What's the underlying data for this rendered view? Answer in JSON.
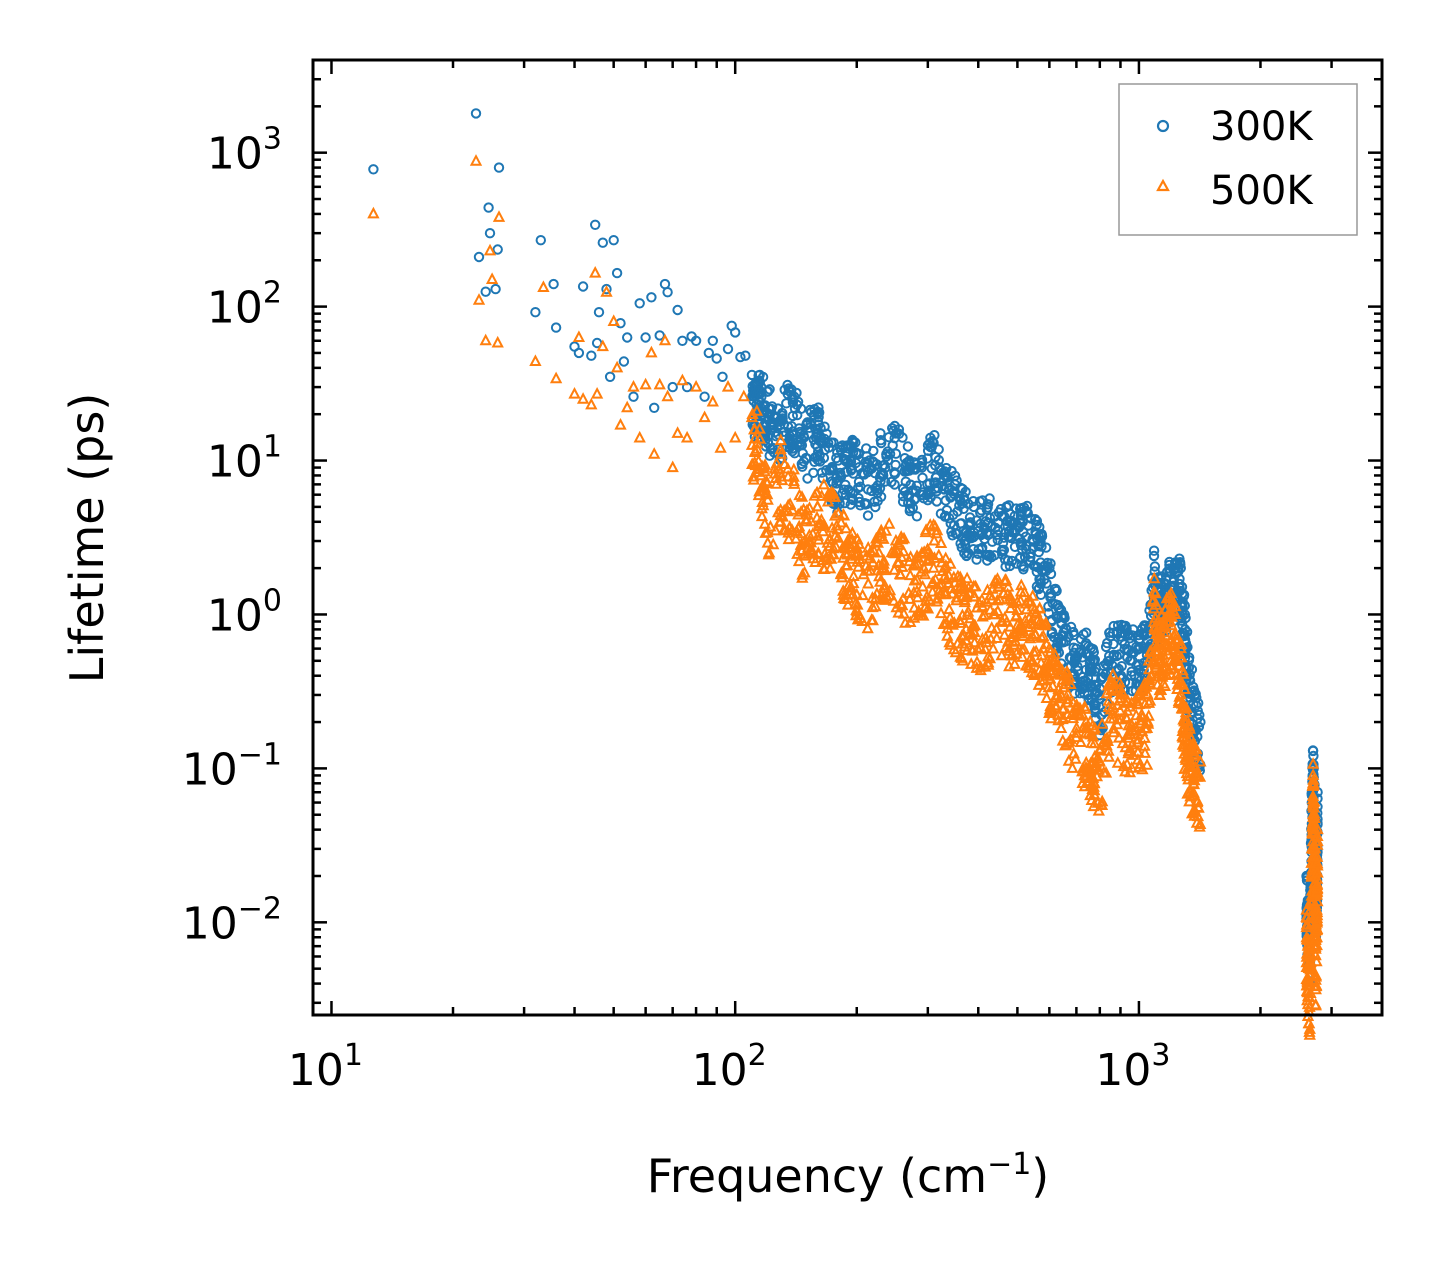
{
  "chart_data": {
    "type": "scatter",
    "title": "",
    "xlabel": "Frequency (cm",
    "xlabel_sup": "−1",
    "xlabel_end": ")",
    "ylabel": "Lifetime (ps)",
    "xscale": "log",
    "yscale": "log",
    "xlim": [
      9,
      4000
    ],
    "ylim": [
      0.0025,
      4000
    ],
    "x_ticks": [
      {
        "value": 10,
        "base": "10",
        "exp": "1"
      },
      {
        "value": 100,
        "base": "10",
        "exp": "2"
      },
      {
        "value": 1000,
        "base": "10",
        "exp": "3"
      }
    ],
    "y_ticks": [
      {
        "value": 0.01,
        "base": "10",
        "exp": "−2"
      },
      {
        "value": 0.1,
        "base": "10",
        "exp": "−1"
      },
      {
        "value": 1,
        "base": "10",
        "exp": "0"
      },
      {
        "value": 10,
        "base": "10",
        "exp": "1"
      },
      {
        "value": 100,
        "base": "10",
        "exp": "2"
      },
      {
        "value": 1000,
        "base": "10",
        "exp": "3"
      }
    ],
    "legend_position": "top-right",
    "series": [
      {
        "name": "300K",
        "marker": "circle",
        "color": "#1f77b4",
        "points": [
          [
            12.7,
            780
          ],
          [
            22.8,
            1800
          ],
          [
            23.2,
            210
          ],
          [
            24.1,
            125
          ],
          [
            24.5,
            440
          ],
          [
            24.7,
            300
          ],
          [
            25.5,
            130
          ],
          [
            25.8,
            235
          ],
          [
            26.0,
            800
          ],
          [
            32.0,
            92
          ],
          [
            33.0,
            270
          ],
          [
            35.5,
            140
          ],
          [
            36.0,
            73
          ],
          [
            40.0,
            55
          ],
          [
            41.0,
            50
          ],
          [
            42.0,
            135
          ],
          [
            44.0,
            48
          ],
          [
            45.0,
            340
          ],
          [
            45.5,
            58
          ],
          [
            46.0,
            92
          ],
          [
            47.0,
            260
          ],
          [
            48.0,
            130
          ],
          [
            49.0,
            35
          ],
          [
            50.0,
            270
          ],
          [
            51.0,
            165
          ],
          [
            52.0,
            78
          ],
          [
            53.0,
            44
          ],
          [
            54.0,
            63
          ],
          [
            56.0,
            26
          ],
          [
            58.0,
            105
          ],
          [
            60.0,
            63
          ],
          [
            62.0,
            115
          ],
          [
            63.0,
            22
          ],
          [
            65.0,
            65
          ],
          [
            67.0,
            140
          ],
          [
            68.0,
            124
          ],
          [
            70.0,
            30
          ],
          [
            72.0,
            95
          ],
          [
            74.0,
            60
          ],
          [
            76.0,
            30
          ],
          [
            78.0,
            64
          ],
          [
            80.0,
            60
          ],
          [
            84.0,
            26
          ],
          [
            86.0,
            50
          ],
          [
            88.0,
            60
          ],
          [
            90.0,
            46
          ],
          [
            93.0,
            35
          ],
          [
            96.0,
            53
          ],
          [
            98.0,
            75
          ],
          [
            100.0,
            68
          ],
          [
            103.0,
            47
          ],
          [
            106.0,
            48
          ],
          [
            110.0,
            36
          ],
          [
            113.0,
            31
          ],
          [
            116.0,
            30
          ],
          [
            120.0,
            28
          ],
          [
            125.0,
            19
          ],
          [
            135.0,
            27
          ],
          [
            140.0,
            26
          ],
          [
            150.0,
            17
          ],
          [
            160.0,
            20
          ],
          [
            170.0,
            13
          ],
          [
            180.0,
            10
          ],
          [
            190.0,
            12
          ],
          [
            200.0,
            11
          ],
          [
            215.0,
            10
          ],
          [
            230.0,
            13
          ],
          [
            250.0,
            15
          ],
          [
            270.0,
            10
          ],
          [
            290.0,
            9
          ],
          [
            310.0,
            13
          ],
          [
            330.0,
            8
          ],
          [
            350.0,
            7
          ],
          [
            370.0,
            5.5
          ],
          [
            390.0,
            5
          ],
          [
            420.0,
            4.8
          ],
          [
            450.0,
            4.6
          ],
          [
            480.0,
            4.5
          ],
          [
            510.0,
            4.4
          ],
          [
            540.0,
            4.2
          ],
          [
            570.0,
            3
          ],
          [
            600.0,
            2
          ],
          [
            630.0,
            1.15
          ],
          [
            660.0,
            0.8
          ],
          [
            700.0,
            0.6
          ],
          [
            740.0,
            0.65
          ],
          [
            770.0,
            0.5
          ],
          [
            800.0,
            0.33
          ],
          [
            850.0,
            0.72
          ],
          [
            900.0,
            0.72
          ],
          [
            950.0,
            0.7
          ],
          [
            1000.0,
            0.68
          ],
          [
            1050.0,
            0.75
          ],
          [
            1090.0,
            2.4
          ],
          [
            1120.0,
            1.4
          ],
          [
            1150.0,
            1.6
          ],
          [
            1190.0,
            2.1
          ],
          [
            1230.0,
            2.0
          ],
          [
            1270.0,
            2.0
          ],
          [
            1300.0,
            1.0
          ],
          [
            1330.0,
            0.45
          ],
          [
            1370.0,
            0.32
          ],
          [
            1420.0,
            0.2
          ],
          [
            2600.0,
            0.02
          ],
          [
            2620.0,
            0.012
          ],
          [
            2650.0,
            0.009
          ],
          [
            2680.0,
            0.06
          ],
          [
            2700.0,
            0.13
          ],
          [
            2710.0,
            0.1
          ],
          [
            2730.0,
            0.05
          ],
          [
            2740.0,
            0.015
          ],
          [
            2760.0,
            0.028
          ],
          [
            2770.0,
            0.07
          ]
        ]
      },
      {
        "name": "500K",
        "marker": "triangle",
        "color": "#ff7f0e",
        "points": [
          [
            12.7,
            400
          ],
          [
            22.8,
            880
          ],
          [
            23.2,
            110
          ],
          [
            24.1,
            60
          ],
          [
            24.7,
            230
          ],
          [
            25.0,
            150
          ],
          [
            25.8,
            58
          ],
          [
            26.0,
            380
          ],
          [
            32.0,
            44
          ],
          [
            33.5,
            133
          ],
          [
            36.0,
            34
          ],
          [
            40.0,
            27
          ],
          [
            41.0,
            63
          ],
          [
            42.0,
            25
          ],
          [
            44.0,
            23
          ],
          [
            45.0,
            165
          ],
          [
            45.5,
            27
          ],
          [
            47.0,
            55
          ],
          [
            48.0,
            124
          ],
          [
            50.0,
            80
          ],
          [
            51.0,
            40
          ],
          [
            52.0,
            17
          ],
          [
            54.0,
            22
          ],
          [
            56.0,
            30
          ],
          [
            58.0,
            14
          ],
          [
            60.0,
            31
          ],
          [
            62.0,
            50
          ],
          [
            63.0,
            11
          ],
          [
            65.0,
            31
          ],
          [
            67.0,
            60
          ],
          [
            68.0,
            26
          ],
          [
            70.0,
            9
          ],
          [
            72.0,
            15
          ],
          [
            74.0,
            33
          ],
          [
            76.0,
            14
          ],
          [
            80.0,
            30
          ],
          [
            84.0,
            19
          ],
          [
            88.0,
            24
          ],
          [
            92.0,
            12
          ],
          [
            96.0,
            30
          ],
          [
            100.0,
            14
          ],
          [
            105.0,
            26
          ],
          [
            110.0,
            19
          ],
          [
            115.0,
            16
          ],
          [
            120.0,
            6
          ],
          [
            130.0,
            11
          ],
          [
            140.0,
            7
          ],
          [
            150.0,
            4
          ],
          [
            160.0,
            5
          ],
          [
            170.0,
            6
          ],
          [
            180.0,
            4.5
          ],
          [
            190.0,
            3
          ],
          [
            200.0,
            2.5
          ],
          [
            215.0,
            2.3
          ],
          [
            230.0,
            3.5
          ],
          [
            250.0,
            3
          ],
          [
            270.0,
            2.2
          ],
          [
            290.0,
            2.5
          ],
          [
            310.0,
            3.8
          ],
          [
            330.0,
            2
          ],
          [
            350.0,
            1.6
          ],
          [
            370.0,
            1.4
          ],
          [
            390.0,
            1.3
          ],
          [
            420.0,
            1.2
          ],
          [
            450.0,
            1.5
          ],
          [
            480.0,
            1.3
          ],
          [
            510.0,
            1.4
          ],
          [
            540.0,
            1.2
          ],
          [
            570.0,
            0.9
          ],
          [
            600.0,
            0.6
          ],
          [
            630.0,
            0.45
          ],
          [
            660.0,
            0.35
          ],
          [
            700.0,
            0.25
          ],
          [
            740.0,
            0.2
          ],
          [
            770.0,
            0.16
          ],
          [
            800.0,
            0.13
          ],
          [
            850.0,
            0.35
          ],
          [
            900.0,
            0.3
          ],
          [
            950.0,
            0.25
          ],
          [
            1000.0,
            0.26
          ],
          [
            1050.0,
            0.3
          ],
          [
            1090.0,
            1.4
          ],
          [
            1120.0,
            0.7
          ],
          [
            1150.0,
            0.9
          ],
          [
            1190.0,
            1.2
          ],
          [
            1230.0,
            1.0
          ],
          [
            1270.0,
            0.6
          ],
          [
            1300.0,
            0.25
          ],
          [
            1330.0,
            0.15
          ],
          [
            1370.0,
            0.12
          ],
          [
            1420.0,
            0.11
          ],
          [
            2600.0,
            0.012
          ],
          [
            2620.0,
            0.007
          ],
          [
            2650.0,
            0.005
          ],
          [
            2680.0,
            0.03
          ],
          [
            2700.0,
            0.09
          ],
          [
            2710.0,
            0.06
          ],
          [
            2730.0,
            0.03
          ],
          [
            2740.0,
            0.008
          ],
          [
            2760.0,
            0.015
          ],
          [
            2770.0,
            0.04
          ]
        ]
      }
    ]
  }
}
